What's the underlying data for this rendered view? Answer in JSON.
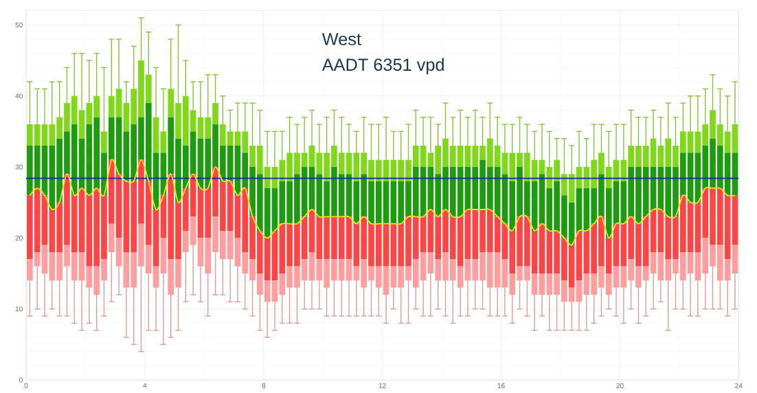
{
  "chart_data": {
    "type": "bar",
    "stacked": true,
    "title": "West",
    "subtitle": "AADT 6351 vpd",
    "grid": true,
    "xlim": [
      0,
      24
    ],
    "xticks": [
      0,
      4,
      8,
      12,
      16,
      20,
      24
    ],
    "ylim": [
      0,
      52
    ],
    "yticks": [
      0,
      10,
      20,
      30,
      40,
      50
    ],
    "x": [
      0.125,
      0.375,
      0.625,
      0.875,
      1.125,
      1.375,
      1.625,
      1.875,
      2.125,
      2.375,
      2.625,
      2.875,
      3.125,
      3.375,
      3.625,
      3.875,
      4.125,
      4.375,
      4.625,
      4.875,
      5.125,
      5.375,
      5.625,
      5.875,
      6.125,
      6.375,
      6.625,
      6.875,
      7.125,
      7.375,
      7.625,
      7.875,
      8.125,
      8.375,
      8.625,
      8.875,
      9.125,
      9.375,
      9.625,
      9.875,
      10.125,
      10.375,
      10.625,
      10.875,
      11.125,
      11.375,
      11.625,
      11.875,
      12.125,
      12.375,
      12.625,
      12.875,
      13.125,
      13.375,
      13.625,
      13.875,
      14.125,
      14.375,
      14.625,
      14.875,
      15.125,
      15.375,
      15.625,
      15.875,
      16.125,
      16.375,
      16.625,
      16.875,
      17.125,
      17.375,
      17.625,
      17.875,
      18.125,
      18.375,
      18.625,
      18.875,
      19.125,
      19.375,
      19.625,
      19.875,
      20.125,
      20.375,
      20.625,
      20.875,
      21.125,
      21.375,
      21.625,
      21.875,
      22.125,
      22.375,
      22.625,
      22.875,
      23.125,
      23.375,
      23.625,
      23.875
    ],
    "series": [
      {
        "color": "#ff9e9e",
        "base": [
          14,
          16,
          15,
          14,
          14,
          16,
          14,
          14,
          13,
          12,
          14,
          18,
          16,
          13,
          13,
          16,
          15,
          13,
          15,
          12,
          13,
          18,
          19,
          16,
          15,
          18,
          17,
          17,
          16,
          15,
          14,
          12,
          11,
          11,
          12,
          13,
          13,
          14,
          14,
          14,
          13,
          14,
          14,
          14,
          14,
          13,
          14,
          13,
          12,
          13,
          13,
          14,
          13,
          14,
          15,
          14,
          14,
          14,
          13,
          14,
          14,
          14,
          13,
          13,
          13,
          12,
          14,
          14,
          12,
          12,
          12,
          12,
          11,
          11,
          11,
          12,
          12,
          13,
          12,
          13,
          13,
          14,
          13,
          14,
          15,
          14,
          14,
          15,
          14,
          15,
          14,
          15,
          16,
          14,
          14,
          15
        ],
        "values": [
          3,
          2,
          4,
          4,
          4,
          3,
          4,
          4,
          3,
          4,
          3,
          4,
          4,
          5,
          5,
          6,
          4,
          3,
          5,
          5,
          4,
          3,
          4,
          4,
          5,
          5,
          4,
          4,
          4,
          3,
          3,
          3,
          3,
          3,
          3,
          3,
          3,
          3,
          4,
          3,
          4,
          3,
          3,
          3,
          2,
          4,
          2,
          3,
          4,
          3,
          3,
          2,
          4,
          4,
          3,
          3,
          4,
          3,
          3,
          3,
          3,
          4,
          5,
          5,
          4,
          3,
          2,
          2,
          3,
          3,
          3,
          3,
          3,
          2,
          3,
          3,
          3,
          3,
          3,
          3,
          3,
          3,
          3,
          2,
          3,
          4,
          3,
          2,
          4,
          3,
          4,
          5,
          3,
          5,
          3,
          4
        ],
        "errors": [
          [
            9,
            14
          ],
          [
            10,
            16
          ],
          [
            9,
            15
          ],
          [
            10,
            14
          ],
          [
            9,
            14
          ],
          [
            9,
            16
          ],
          [
            8,
            14
          ],
          [
            7,
            14
          ],
          [
            8,
            13
          ],
          [
            7,
            12
          ],
          [
            9,
            14
          ],
          [
            11,
            18
          ],
          [
            12,
            16
          ],
          [
            6,
            13
          ],
          [
            5,
            13
          ],
          [
            4,
            16
          ],
          [
            7,
            15
          ],
          [
            7,
            13
          ],
          [
            5,
            15
          ],
          [
            6,
            12
          ],
          [
            7,
            13
          ],
          [
            11,
            18
          ],
          [
            12,
            19
          ],
          [
            11,
            16
          ],
          [
            9,
            15
          ],
          [
            12,
            18
          ],
          [
            12,
            17
          ],
          [
            11,
            17
          ],
          [
            11,
            16
          ],
          [
            10,
            15
          ],
          [
            9,
            14
          ],
          [
            7,
            12
          ],
          [
            6,
            11
          ],
          [
            7,
            11
          ],
          [
            8,
            12
          ],
          [
            8,
            13
          ],
          [
            8,
            13
          ],
          [
            10,
            14
          ],
          [
            10,
            14
          ],
          [
            10,
            14
          ],
          [
            9,
            13
          ],
          [
            9,
            14
          ],
          [
            9,
            14
          ],
          [
            9,
            14
          ],
          [
            9,
            14
          ],
          [
            9,
            13
          ],
          [
            9,
            14
          ],
          [
            9,
            13
          ],
          [
            8,
            12
          ],
          [
            10,
            13
          ],
          [
            8,
            13
          ],
          [
            8,
            14
          ],
          [
            10,
            13
          ],
          [
            9,
            14
          ],
          [
            9,
            15
          ],
          [
            10,
            14
          ],
          [
            9,
            14
          ],
          [
            8,
            14
          ],
          [
            9,
            13
          ],
          [
            9,
            14
          ],
          [
            10,
            14
          ],
          [
            10,
            14
          ],
          [
            9,
            13
          ],
          [
            9,
            13
          ],
          [
            9,
            13
          ],
          [
            8,
            12
          ],
          [
            10,
            14
          ],
          [
            9,
            14
          ],
          [
            7,
            12
          ],
          [
            9,
            12
          ],
          [
            7,
            12
          ],
          [
            7,
            12
          ],
          [
            7,
            11
          ],
          [
            7,
            11
          ],
          [
            7,
            11
          ],
          [
            7,
            12
          ],
          [
            8,
            12
          ],
          [
            9,
            13
          ],
          [
            10,
            12
          ],
          [
            9,
            13
          ],
          [
            8,
            13
          ],
          [
            10,
            14
          ],
          [
            8,
            13
          ],
          [
            9,
            14
          ],
          [
            10,
            15
          ],
          [
            11,
            14
          ],
          [
            7,
            14
          ],
          [
            10,
            15
          ],
          [
            10,
            14
          ],
          [
            9,
            15
          ],
          [
            9,
            14
          ],
          [
            10,
            15
          ],
          [
            10,
            16
          ],
          [
            10,
            14
          ],
          [
            9,
            14
          ],
          [
            10,
            15
          ]
        ]
      },
      {
        "color": "#fd4545",
        "values": [
          9,
          9,
          7,
          6,
          7,
          10,
          8,
          9,
          10,
          11,
          9,
          9,
          9,
          10,
          10,
          9,
          9,
          8,
          6,
          12,
          8,
          6,
          6,
          7,
          7,
          7,
          7,
          7,
          6,
          9,
          6,
          6,
          6,
          7,
          7,
          6,
          6,
          6,
          6,
          6,
          6,
          6,
          6,
          6,
          6,
          6,
          6,
          6,
          6,
          6,
          6,
          7,
          6,
          5,
          6,
          6,
          6,
          6,
          7,
          7,
          7,
          6,
          6,
          5,
          5,
          6,
          7,
          7,
          6,
          7,
          6,
          6,
          6,
          6,
          7,
          6,
          7,
          7,
          5,
          6,
          6,
          6,
          6,
          7,
          6,
          6,
          6,
          6,
          8,
          7,
          7,
          7,
          8,
          8,
          9,
          7
        ]
      },
      {
        "color": "#1e9b10",
        "values": [
          7,
          6,
          7,
          9,
          9,
          6,
          10,
          7,
          10,
          10,
          6,
          6,
          8,
          7,
          8,
          6,
          11,
          8,
          6,
          8,
          9,
          6,
          6,
          7,
          7,
          6,
          5,
          5,
          7,
          5,
          7,
          8,
          7,
          6,
          6,
          6,
          7,
          7,
          6,
          6,
          5,
          7,
          6,
          6,
          6,
          6,
          6,
          6,
          6,
          6,
          6,
          5,
          7,
          7,
          6,
          6,
          6,
          7,
          7,
          6,
          6,
          7,
          6,
          7,
          7,
          7,
          7,
          5,
          7,
          7,
          6,
          7,
          6,
          6,
          6,
          6,
          5,
          6,
          7,
          6,
          6,
          7,
          8,
          7,
          6,
          6,
          7,
          7,
          6,
          7,
          7,
          6,
          7,
          6,
          6,
          6
        ]
      },
      {
        "color": "#7fd81a",
        "values": [
          3,
          3,
          3,
          3,
          3,
          4,
          4,
          4,
          3,
          3,
          3,
          3,
          4,
          4,
          5,
          8,
          4,
          5,
          3,
          4,
          5,
          7,
          3,
          3,
          3,
          3,
          3,
          2,
          2,
          3,
          3,
          4,
          3,
          3,
          3,
          4,
          3,
          2,
          3,
          3,
          4,
          3,
          3,
          3,
          4,
          3,
          3,
          3,
          3,
          3,
          3,
          3,
          3,
          3,
          2,
          4,
          4,
          3,
          3,
          3,
          3,
          2,
          4,
          3,
          3,
          4,
          2,
          4,
          3,
          2,
          3,
          3,
          3,
          4,
          3,
          3,
          4,
          3,
          3,
          3,
          3,
          3,
          3,
          3,
          4,
          3,
          4,
          3,
          3,
          3,
          3,
          3,
          4,
          3,
          3,
          4
        ],
        "errors": [
          [
            36,
            42
          ],
          [
            36,
            41
          ],
          [
            36,
            41
          ],
          [
            36,
            42
          ],
          [
            37,
            42
          ],
          [
            39,
            44
          ],
          [
            40,
            46
          ],
          [
            38,
            46
          ],
          [
            39,
            45
          ],
          [
            40,
            46
          ],
          [
            35,
            44
          ],
          [
            40,
            48
          ],
          [
            41,
            48
          ],
          [
            39,
            42
          ],
          [
            41,
            47
          ],
          [
            45,
            51
          ],
          [
            43,
            49
          ],
          [
            37,
            44
          ],
          [
            35,
            41
          ],
          [
            41,
            48
          ],
          [
            39,
            50
          ],
          [
            40,
            45
          ],
          [
            38,
            42
          ],
          [
            37,
            42
          ],
          [
            37,
            43
          ],
          [
            39,
            43
          ],
          [
            36,
            40
          ],
          [
            35,
            38
          ],
          [
            35,
            39
          ],
          [
            35,
            39
          ],
          [
            33,
            39
          ],
          [
            33,
            38
          ],
          [
            30,
            35
          ],
          [
            30,
            35
          ],
          [
            31,
            35
          ],
          [
            32,
            37
          ],
          [
            32,
            36
          ],
          [
            32,
            37
          ],
          [
            33,
            38
          ],
          [
            32,
            36
          ],
          [
            32,
            37
          ],
          [
            33,
            38
          ],
          [
            32,
            37
          ],
          [
            32,
            36
          ],
          [
            32,
            35
          ],
          [
            32,
            37
          ],
          [
            31,
            36
          ],
          [
            31,
            36
          ],
          [
            31,
            37
          ],
          [
            31,
            35
          ],
          [
            31,
            35
          ],
          [
            31,
            36
          ],
          [
            33,
            38
          ],
          [
            33,
            37
          ],
          [
            32,
            37
          ],
          [
            33,
            36
          ],
          [
            34,
            39
          ],
          [
            33,
            37
          ],
          [
            33,
            38
          ],
          [
            33,
            37
          ],
          [
            33,
            38
          ],
          [
            33,
            37
          ],
          [
            34,
            39
          ],
          [
            33,
            37
          ],
          [
            32,
            36
          ],
          [
            32,
            36
          ],
          [
            32,
            37
          ],
          [
            32,
            36
          ],
          [
            31,
            35
          ],
          [
            31,
            36
          ],
          [
            30,
            35
          ],
          [
            31,
            34
          ],
          [
            29,
            34
          ],
          [
            29,
            33
          ],
          [
            30,
            35
          ],
          [
            30,
            34
          ],
          [
            31,
            36
          ],
          [
            32,
            36
          ],
          [
            30,
            35
          ],
          [
            31,
            36
          ],
          [
            31,
            36
          ],
          [
            33,
            38
          ],
          [
            33,
            37
          ],
          [
            33,
            37
          ],
          [
            34,
            38
          ],
          [
            33,
            37
          ],
          [
            34,
            39
          ],
          [
            33,
            37
          ],
          [
            35,
            39
          ],
          [
            35,
            40
          ],
          [
            35,
            40
          ],
          [
            36,
            41
          ],
          [
            38,
            43
          ],
          [
            36,
            41
          ],
          [
            35,
            40
          ],
          [
            36,
            42
          ]
        ]
      },
      {
        "type": "line",
        "color": "#f5e11b",
        "values": [
          26,
          27,
          26,
          24,
          25,
          29,
          26,
          27,
          26,
          27,
          26,
          31,
          29,
          28,
          28,
          31,
          28,
          24,
          26,
          29,
          25,
          27,
          29,
          27,
          27,
          30,
          28,
          28,
          26,
          27,
          23,
          21,
          20,
          21,
          22,
          22,
          22,
          23,
          24,
          23,
          23,
          23,
          23,
          23,
          22,
          23,
          22,
          22,
          22,
          22,
          22,
          23,
          23,
          23,
          24,
          23,
          24,
          23,
          23,
          24,
          24,
          24,
          24,
          23,
          22,
          21,
          23,
          23,
          21,
          22,
          21,
          21,
          20,
          19,
          21,
          21,
          22,
          23,
          20,
          22,
          22,
          23,
          22,
          23,
          24,
          24,
          23,
          23,
          26,
          25,
          25,
          27,
          27,
          27,
          26,
          26
        ]
      }
    ],
    "ref_lines": [
      {
        "axis": "y",
        "value": 28.4,
        "color": "#1a2aa0"
      }
    ]
  }
}
